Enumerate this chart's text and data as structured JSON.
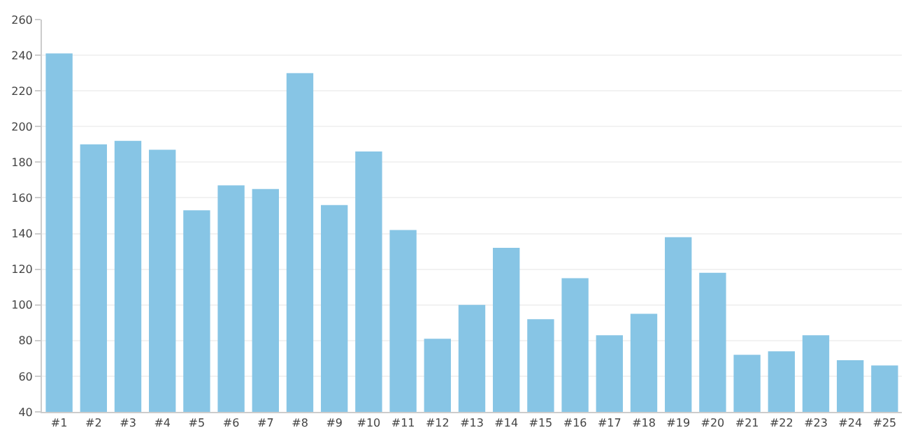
{
  "chart_data": {
    "type": "bar",
    "categories": [
      "#1",
      "#2",
      "#3",
      "#4",
      "#5",
      "#6",
      "#7",
      "#8",
      "#9",
      "#10",
      "#11",
      "#12",
      "#13",
      "#14",
      "#15",
      "#16",
      "#17",
      "#18",
      "#19",
      "#20",
      "#21",
      "#22",
      "#23",
      "#24",
      "#25"
    ],
    "values": [
      241,
      190,
      192,
      187,
      153,
      167,
      165,
      230,
      156,
      186,
      142,
      81,
      100,
      132,
      92,
      115,
      83,
      95,
      138,
      118,
      72,
      74,
      83,
      69,
      66
    ],
    "color": "#87c5e5",
    "ylim": [
      40,
      260
    ],
    "yticks": [
      40,
      60,
      80,
      100,
      120,
      140,
      160,
      180,
      200,
      220,
      240,
      260
    ],
    "grid": "y"
  }
}
